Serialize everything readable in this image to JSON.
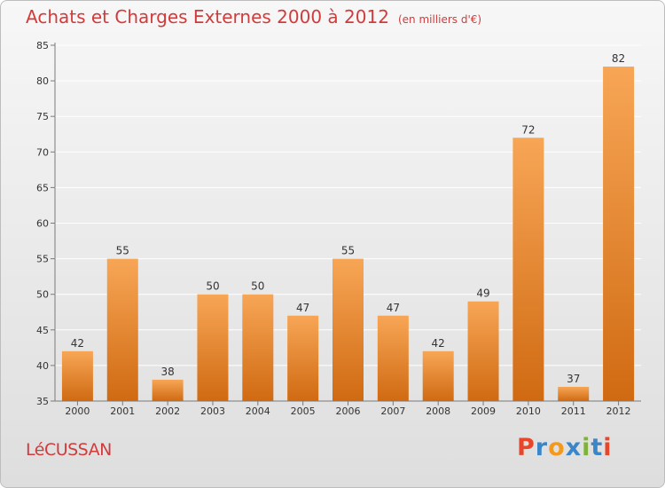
{
  "header": {
    "title": "Achats et Charges Externes 2000 à 2012",
    "unit": "(en milliers d'€)"
  },
  "footer": {
    "place": "LéCUSSAN",
    "logo": "Proxiti",
    "logo_colors": [
      "#e8462a",
      "#3a86c8",
      "#f39a1e",
      "#3a86c8",
      "#7fb23b",
      "#3a86c8",
      "#e8462a"
    ]
  },
  "colors": {
    "title": "#d23b3b",
    "bar_top": "#f7a656",
    "bar_bottom": "#d06a12",
    "grid": "#ffffff",
    "axis": "#7a7a7a"
  },
  "chart_data": {
    "type": "bar",
    "title": "Achats et Charges Externes 2000 à 2012",
    "subtitle": "(en milliers d'€)",
    "categories": [
      "2000",
      "2001",
      "2002",
      "2003",
      "2004",
      "2005",
      "2006",
      "2007",
      "2008",
      "2009",
      "2010",
      "2011",
      "2012"
    ],
    "values": [
      42,
      55,
      38,
      50,
      50,
      47,
      55,
      47,
      42,
      49,
      72,
      37,
      82
    ],
    "ylim": [
      35,
      85
    ],
    "yticks": [
      35,
      40,
      45,
      50,
      55,
      60,
      65,
      70,
      75,
      80,
      85
    ],
    "xlabel": "",
    "ylabel": "",
    "grid": true,
    "data_labels": true
  }
}
